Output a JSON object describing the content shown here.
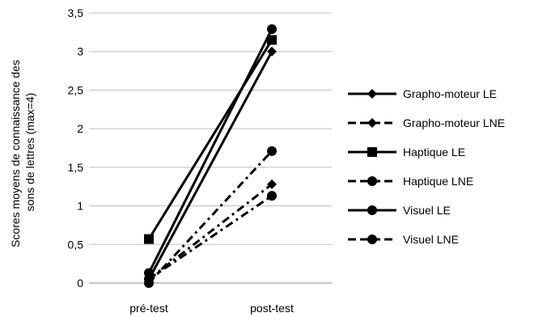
{
  "chart_data": {
    "type": "line",
    "categories": [
      "pré-test",
      "post-test"
    ],
    "ylabel_lines": [
      "Scores moyens de connaissance des",
      "sons de lettres  (max=4)"
    ],
    "ylim": [
      0,
      3.5
    ],
    "yticks": [
      "0",
      "0,5",
      "1",
      "1,5",
      "2",
      "2,5",
      "3",
      "3,5"
    ],
    "ytick_values": [
      0,
      0.5,
      1,
      1.5,
      2,
      2.5,
      3,
      3.5
    ],
    "grid": true,
    "legend_position": "right",
    "series": [
      {
        "name": "Grapho-moteur LE",
        "values": [
          0.05,
          3.0
        ],
        "marker": "diamond",
        "dash": "solid"
      },
      {
        "name": "Grapho-moteur LNE",
        "values": [
          0.05,
          1.28
        ],
        "marker": "diamond",
        "dash": "dashdot"
      },
      {
        "name": "Haptique LE",
        "values": [
          0.57,
          3.15
        ],
        "marker": "square",
        "dash": "solid"
      },
      {
        "name": "Haptique LNE",
        "values": [
          0.0,
          1.71
        ],
        "marker": "circle",
        "dash": "dashdot"
      },
      {
        "name": "Visuel LE",
        "values": [
          0.13,
          3.29
        ],
        "marker": "circle",
        "dash": "solid"
      },
      {
        "name": "Visuel LNE",
        "values": [
          0.05,
          1.13
        ],
        "marker": "circle",
        "dash": "dashdot"
      }
    ]
  }
}
